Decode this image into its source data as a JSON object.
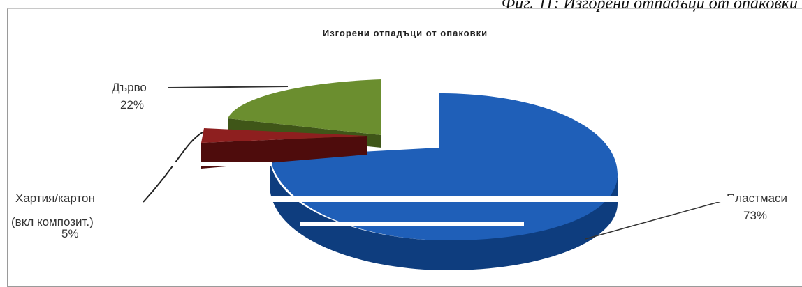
{
  "caption": "Фиг. 11: Изгорени отпадъци от опаковки",
  "chart_data": {
    "type": "pie",
    "title": "Изгорени отпадъци от опаковки",
    "slices": [
      {
        "label": "Пластмаси",
        "value": 73,
        "pct_label": "73%",
        "color": "#1f5fb8",
        "side": "#0e3d7e"
      },
      {
        "label": "Дърво",
        "value": 22,
        "pct_label": "22%",
        "color": "#6b8e2f",
        "side": "#3f5618"
      },
      {
        "label": "Хартия/картон (вкл композит.)",
        "value": 5,
        "pct_label": "5%",
        "color": "#8e1f1f",
        "side": "#4e0c0c"
      }
    ],
    "label_lines": {
      "plastic": "Пластмаси",
      "wood": "Дърво",
      "paper_1": "Хартия/картон",
      "paper_2": "(вкл композит.)"
    },
    "legend": "none",
    "style": "3d-exploded"
  }
}
